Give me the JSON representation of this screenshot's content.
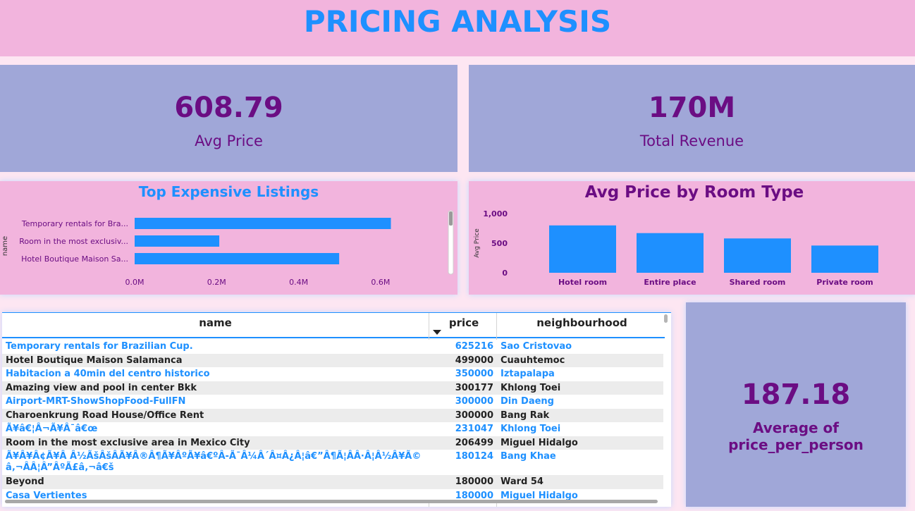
{
  "header": {
    "title": "PRICING ANALYSIS"
  },
  "kpis": {
    "avg_price": {
      "value": "608.79",
      "label": "Avg Price"
    },
    "total_revenue": {
      "value": "170M",
      "label": "Total Revenue"
    },
    "avg_price_per_person": {
      "value": "187.18",
      "label": "Average of price_per_person"
    }
  },
  "colors": {
    "accent": "#1e90ff",
    "purple_text": "#6b0d83",
    "pink_panel": "#f2b4dd",
    "lavender_panel": "#a0a7d8"
  },
  "chart_data": [
    {
      "type": "bar",
      "orientation": "horizontal",
      "title": "Top Expensive Listings",
      "ylabel": "name",
      "xlabel": "",
      "categories": [
        "Temporary rentals for Bra...",
        "Room in the most exclusiv...",
        "Hotel Boutique Maison Sa..."
      ],
      "values": [
        625216,
        206499,
        499000
      ],
      "xlim": [
        0,
        700000
      ],
      "xticks": [
        0,
        200000,
        400000,
        600000
      ],
      "xtick_labels": [
        "0.0M",
        "0.2M",
        "0.4M",
        "0.6M"
      ],
      "grid": false,
      "color": "#1e90ff"
    },
    {
      "type": "bar",
      "title": "Avg Price by Room Type",
      "xlabel": "",
      "ylabel": "Avg Price",
      "categories": [
        "Hotel room",
        "Entire place",
        "Shared room",
        "Private room"
      ],
      "values": [
        800,
        670,
        580,
        460
      ],
      "ylim": [
        0,
        1000
      ],
      "yticks": [
        0,
        500,
        1000
      ],
      "ytick_labels": [
        "0",
        "500",
        "1,000"
      ],
      "grid": false,
      "color": "#1e90ff"
    }
  ],
  "table": {
    "columns": {
      "name": "name",
      "price": "price",
      "neighbourhood": "neighbourhood"
    },
    "sort_indicator": "sort-descending",
    "rows": [
      {
        "name": "Temporary rentals for Brazilian Cup.",
        "price": "625216",
        "neighbourhood": "Sao Cristovao"
      },
      {
        "name": "Hotel Boutique Maison Salamanca",
        "price": "499000",
        "neighbourhood": "Cuauhtemoc"
      },
      {
        "name": "Habitacion a 40min del centro historico",
        "price": "350000",
        "neighbourhood": "Iztapalapa"
      },
      {
        "name": "Amazing view and pool in center Bkk",
        "price": "300177",
        "neighbourhood": "Khlong Toei"
      },
      {
        "name": "Airport-MRT-ShowShopFood-FullFN",
        "price": "300000",
        "neighbourhood": "Din Daeng"
      },
      {
        "name": "Charoenkrung Road House/Office Rent",
        "price": "300000",
        "neighbourhood": "Bang Rak"
      },
      {
        "name": "Ã¥â€¦Â¬Ã¥Â¯â€œ",
        "price": "231047",
        "neighbourhood": "Khlong Toei"
      },
      {
        "name": "Room in the most exclusive area in Mexico City",
        "price": "206499",
        "neighbourhood": "Miguel Hidalgo"
      },
      {
        "name": "Ã¥Â¥Â¢Ã¥Â Â½ÃšÂšÂÃ¥Â®Â¶Ã¥ÂºÃ¥â€ºÂ-Ã¯Â¼Â´Â¤Â¿Â¦â€”Â¶Ã¦ÂÂ·Â¦Â½Â¥Ã©â‚¬ÂÂ¦Â”ÂºÃ£â‚¬â€š",
        "price": "180124",
        "neighbourhood": "Bang Khae"
      },
      {
        "name": "Beyond",
        "price": "180000",
        "neighbourhood": "Ward 54"
      },
      {
        "name": "Casa Vertientes",
        "price": "180000",
        "neighbourhood": "Miguel Hidalgo"
      }
    ]
  }
}
